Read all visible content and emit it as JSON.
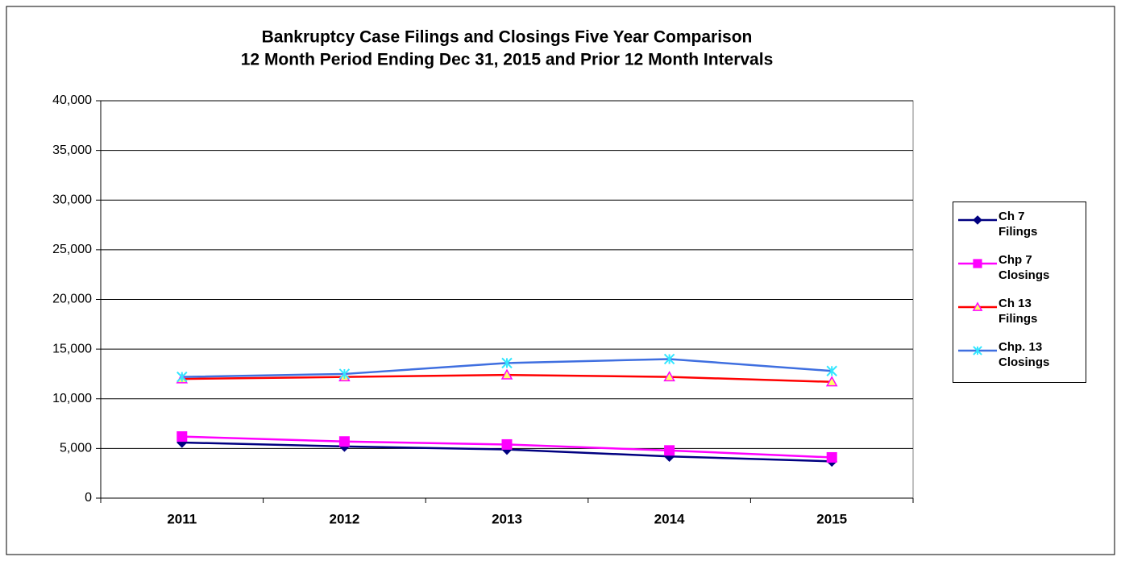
{
  "chart_data": {
    "type": "line",
    "title": "Bankruptcy Case Filings and Closings Five Year Comparison",
    "subtitle": "12 Month Period Ending Dec 31, 2015 and Prior 12 Month Intervals",
    "categories": [
      "2011",
      "2012",
      "2013",
      "2014",
      "2015"
    ],
    "series": [
      {
        "name": "Ch 7 Filings",
        "color": "#000080",
        "marker": "diamond",
        "marker_color": "#000080",
        "values": [
          5600,
          5200,
          4900,
          4200,
          3700
        ]
      },
      {
        "name": "Chp 7 Closings",
        "color": "#ff00ff",
        "marker": "square",
        "marker_color": "#ff00ff",
        "values": [
          6200,
          5700,
          5400,
          4800,
          4100
        ]
      },
      {
        "name": "Ch 13 Filings",
        "color": "#ff0000",
        "marker": "triangle",
        "marker_color": "#ffff66",
        "values": [
          12000,
          12200,
          12400,
          12200,
          11700
        ]
      },
      {
        "name": "Chp. 13 Closings",
        "color": "#3f6fe0",
        "marker": "star",
        "marker_color": "#33e6ff",
        "values": [
          12200,
          12500,
          13600,
          14000,
          12800
        ]
      }
    ],
    "ylim": [
      0,
      40000
    ],
    "yticks": [
      0,
      {
        "value": 5000,
        "label": "5,000"
      },
      {
        "value": 10000,
        "label": "10,000"
      },
      {
        "value": 15000,
        "label": "15,000"
      },
      {
        "value": 20000,
        "label": "20,000"
      },
      {
        "value": 25000,
        "label": "25,000"
      },
      {
        "value": 30000,
        "label": "30,000"
      },
      {
        "value": 35000,
        "label": "35,000"
      },
      {
        "value": 40000,
        "label": "40,000"
      }
    ],
    "grid": true,
    "legend": "right"
  }
}
